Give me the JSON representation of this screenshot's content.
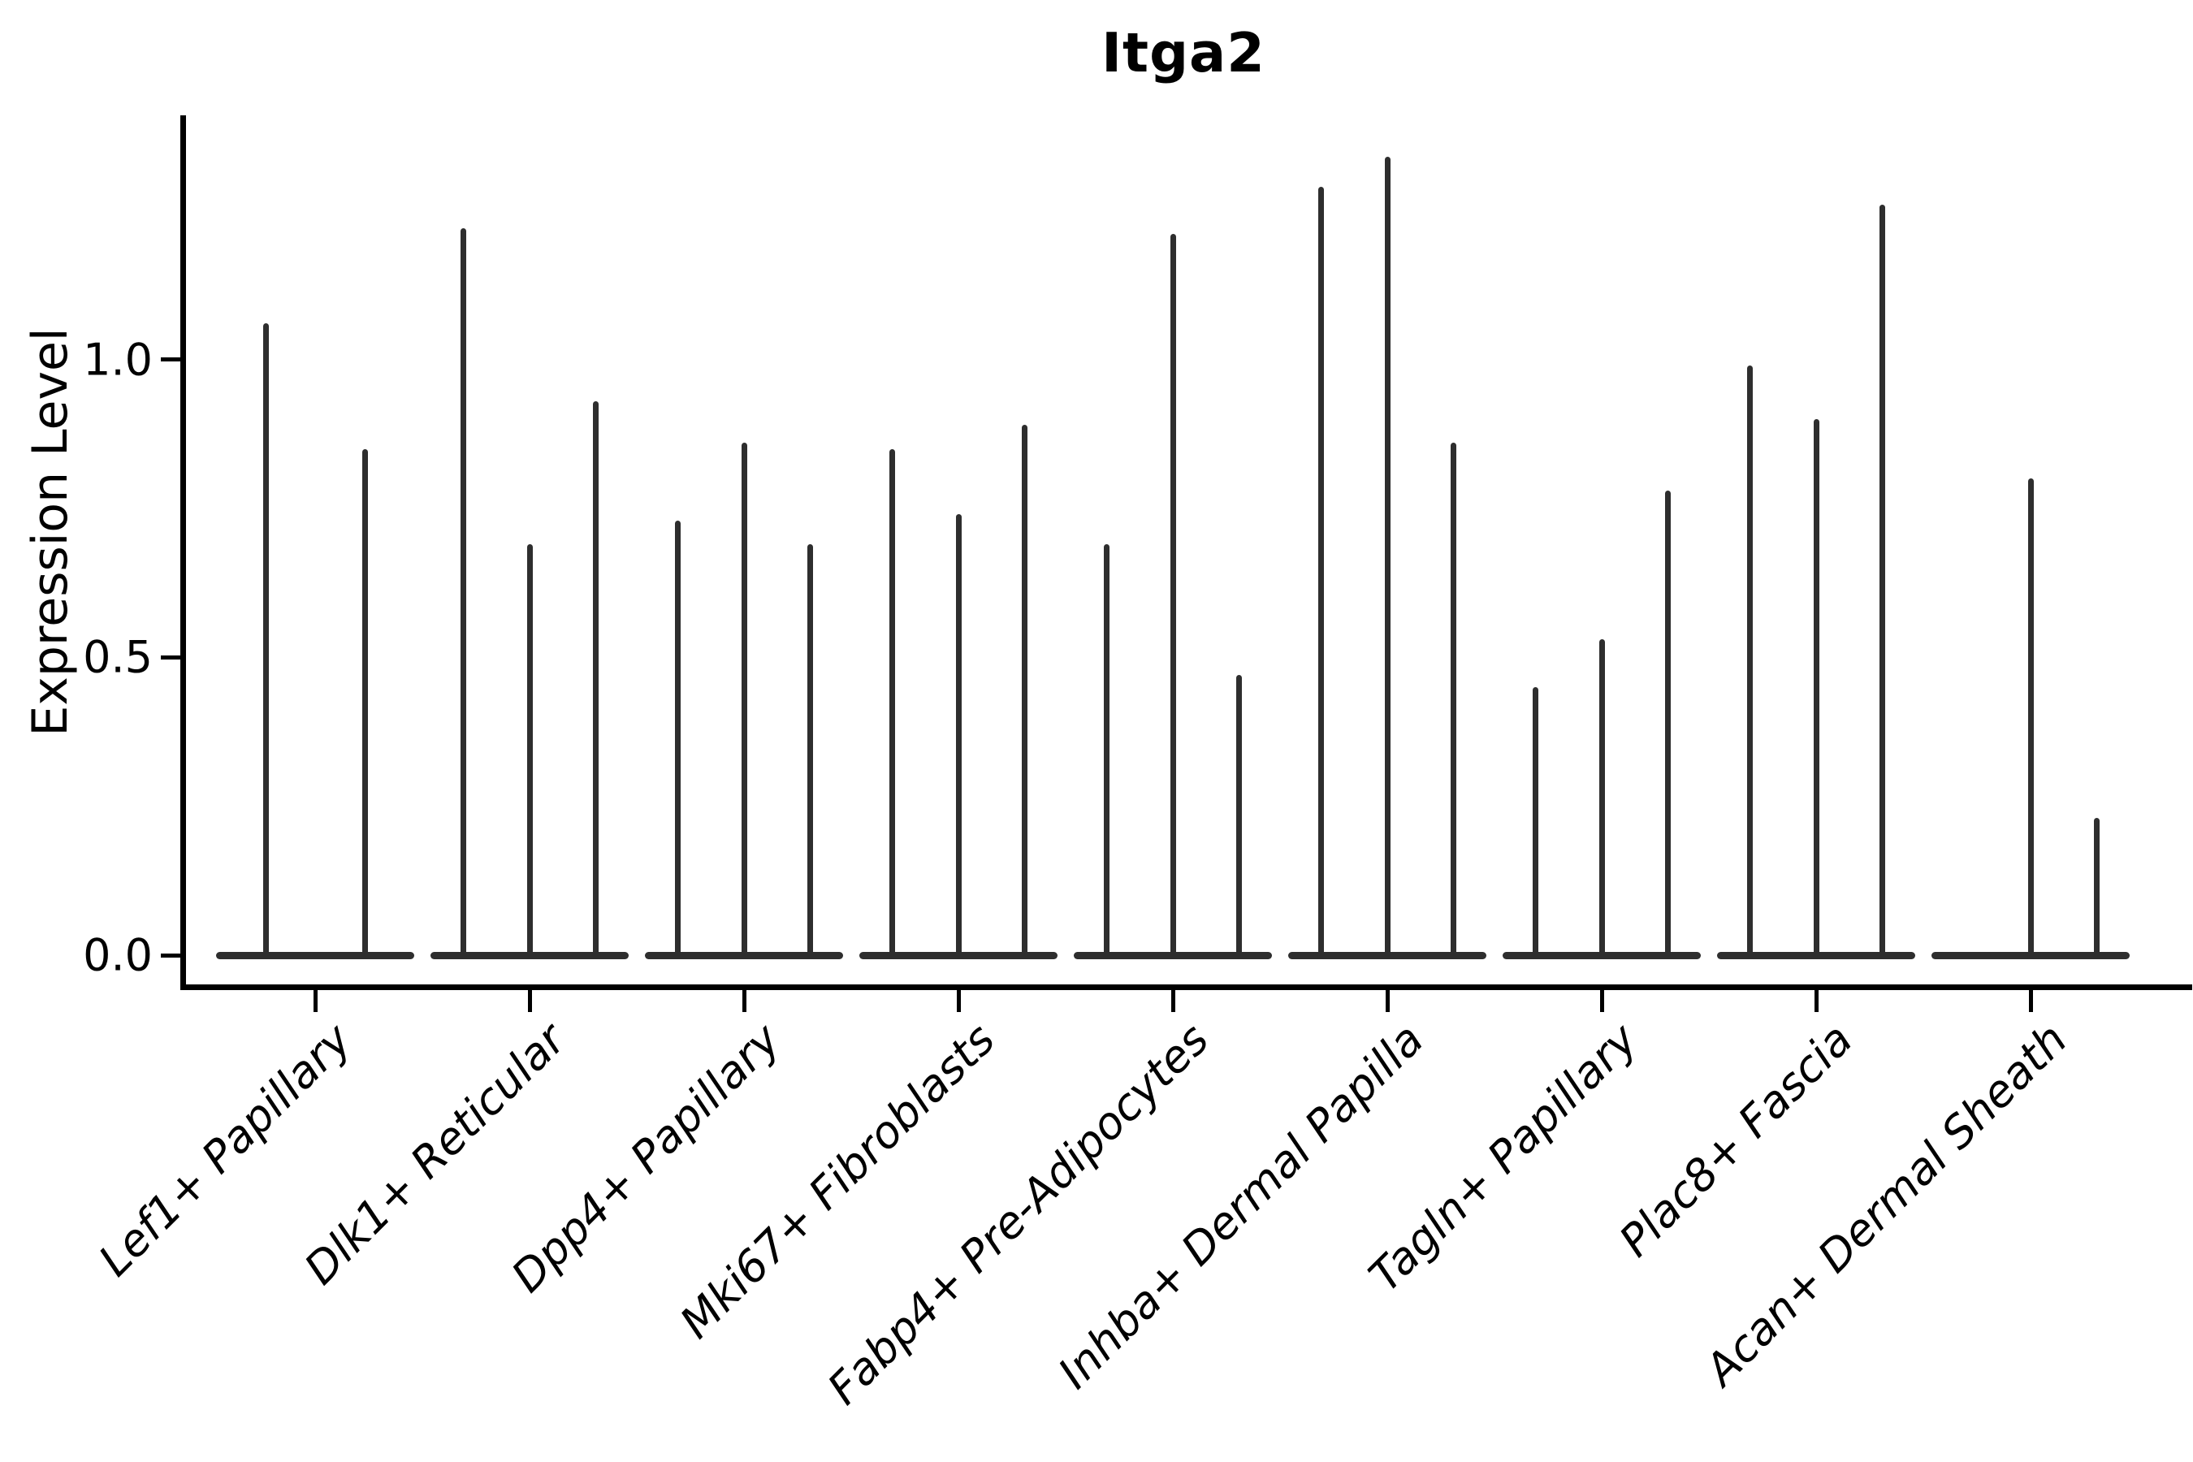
{
  "title": "Itga2",
  "axes": {
    "ylabel": "Expression Level",
    "yticks": [
      {
        "value": 0.0,
        "label": "0.0"
      },
      {
        "value": 0.5,
        "label": "0.5"
      },
      {
        "value": 1.0,
        "label": "1.0"
      }
    ]
  },
  "chart_data": {
    "type": "violin",
    "title": "Itga2",
    "xlabel": "",
    "ylabel": "Expression Level",
    "ylim": [
      -0.05,
      1.41
    ],
    "yticks": [
      0.0,
      0.5,
      1.0
    ],
    "grid": false,
    "legend": false,
    "description": "Single-gene expression violin plot. Each cell-type category holds 2-3 very thin violins: a flat dark bar at expression 0 with a narrow spike rising to the listed maximum expression value. A null entry means that violin is completely flat at 0 (no spike).",
    "categories": [
      "Lef1+ Papillary",
      "Dlk1+ Reticular",
      "Dpp4+ Papillary",
      "Mki67+ Fibroblasts",
      "Fabp4+ Pre-Adipocytes",
      "Inhba+ Dermal Papilla",
      "Tagln+ Papillary",
      "Plac8+ Fascia",
      "Acan+ Dermal Sheath"
    ],
    "series": [
      {
        "category": "Lef1+ Papillary",
        "spike_max": [
          1.06,
          0.85
        ]
      },
      {
        "category": "Dlk1+ Reticular",
        "spike_max": [
          1.22,
          0.69,
          0.93
        ]
      },
      {
        "category": "Dpp4+ Papillary",
        "spike_max": [
          0.73,
          0.86,
          0.69
        ]
      },
      {
        "category": "Mki67+ Fibroblasts",
        "spike_max": [
          0.85,
          0.74,
          0.89
        ]
      },
      {
        "category": "Fabp4+ Pre-Adipocytes",
        "spike_max": [
          0.69,
          1.21,
          0.47
        ]
      },
      {
        "category": "Inhba+ Dermal Papilla",
        "spike_max": [
          1.29,
          1.34,
          0.86
        ]
      },
      {
        "category": "Tagln+ Papillary",
        "spike_max": [
          0.45,
          0.53,
          0.78
        ]
      },
      {
        "category": "Plac8+ Fascia",
        "spike_max": [
          0.99,
          0.9,
          1.26
        ]
      },
      {
        "category": "Acan+ Dermal Sheath",
        "spike_max": [
          null,
          0.8,
          0.23
        ]
      }
    ]
  },
  "colors": {
    "violin": "#2e2e2e",
    "axis": "#000000",
    "text": "#000000",
    "background": "#ffffff"
  }
}
